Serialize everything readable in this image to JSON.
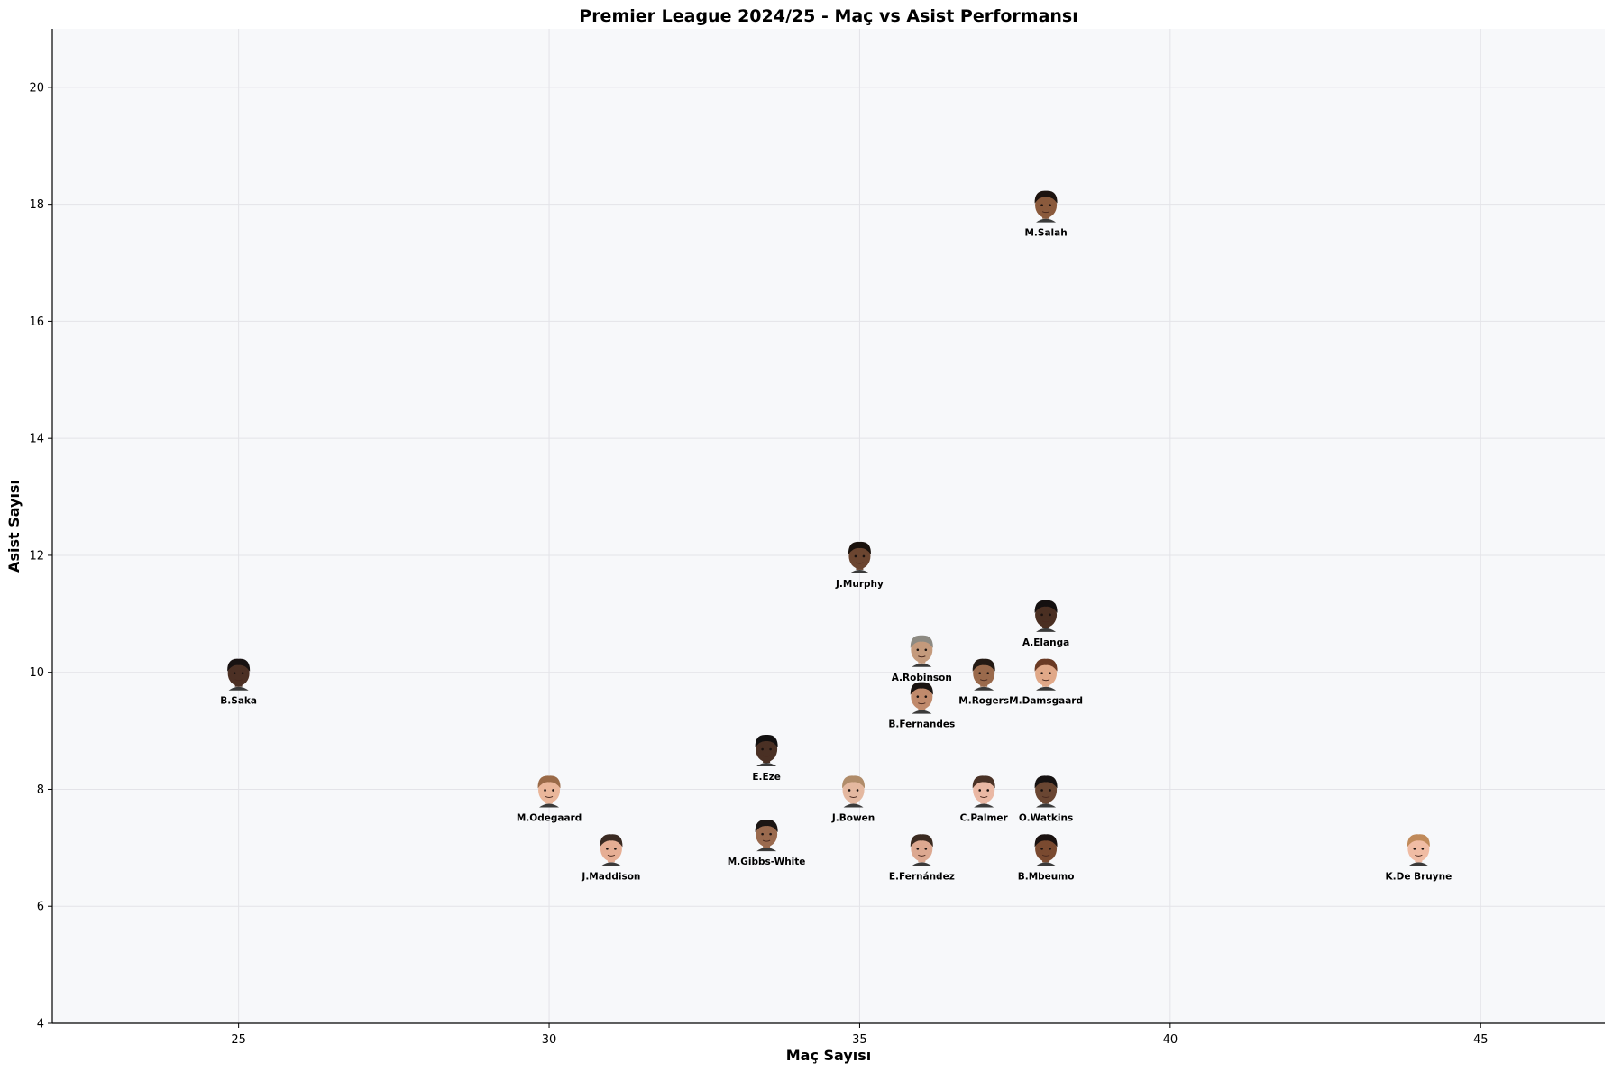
{
  "chart_data": {
    "type": "scatter",
    "title": "Premier League 2024/25 - Maç vs Asist Performansı",
    "xlabel": "Maç Sayısı",
    "ylabel": "Asist Sayısı",
    "xlim": [
      22,
      47
    ],
    "ylim": [
      4,
      21
    ],
    "xticks": [
      25,
      30,
      35,
      40,
      45
    ],
    "yticks": [
      4,
      6,
      8,
      10,
      12,
      14,
      16,
      18,
      20
    ],
    "grid": true,
    "marker": "player-face-photo",
    "points": [
      {
        "name": "M.Salah",
        "x": 38,
        "y": 18,
        "skin": "#8a5a3c",
        "hair": "#1d1410"
      },
      {
        "name": "J.Murphy",
        "x": 35,
        "y": 12,
        "skin": "#6b4530",
        "hair": "#1a120d"
      },
      {
        "name": "A.Elanga",
        "x": 38,
        "y": 11,
        "skin": "#4a2f22",
        "hair": "#141010"
      },
      {
        "name": "A.Robinson",
        "x": 36,
        "y": 10.4,
        "skin": "#c49a7c",
        "hair": "#8d8a82"
      },
      {
        "name": "B.Saka",
        "x": 25,
        "y": 10,
        "skin": "#4c3024",
        "hair": "#181212"
      },
      {
        "name": "M.Rogers",
        "x": 37,
        "y": 10,
        "skin": "#9a6a4c",
        "hair": "#241a14"
      },
      {
        "name": "M.Damsgaard",
        "x": 38,
        "y": 10,
        "skin": "#e0a888",
        "hair": "#6a3a24"
      },
      {
        "name": "B.Fernandes",
        "x": 36,
        "y": 9.6,
        "skin": "#c08a6c",
        "hair": "#1a1412"
      },
      {
        "name": "E.Eze",
        "x": 33.5,
        "y": 8.7,
        "skin": "#4a3024",
        "hair": "#121010"
      },
      {
        "name": "M.Odegaard",
        "x": 30,
        "y": 8,
        "skin": "#eab69a",
        "hair": "#9a6a48"
      },
      {
        "name": "J.Bowen",
        "x": 34.9,
        "y": 8,
        "skin": "#e4b8a0",
        "hair": "#b08c6a"
      },
      {
        "name": "C.Palmer",
        "x": 37,
        "y": 8,
        "skin": "#eab8a4",
        "hair": "#4a3226"
      },
      {
        "name": "O.Watkins",
        "x": 38,
        "y": 8,
        "skin": "#6a4632",
        "hair": "#161212"
      },
      {
        "name": "M.Gibbs-White",
        "x": 33.5,
        "y": 7.25,
        "skin": "#9a6a4e",
        "hair": "#1c1614"
      },
      {
        "name": "J.Maddison",
        "x": 31,
        "y": 7,
        "skin": "#e6ae94",
        "hair": "#3a2a22"
      },
      {
        "name": "E.Fernández",
        "x": 36,
        "y": 7,
        "skin": "#dca890",
        "hair": "#3a2a20"
      },
      {
        "name": "B.Mbeumo",
        "x": 38,
        "y": 7,
        "skin": "#7a4a30",
        "hair": "#1a1210"
      },
      {
        "name": "K.De Bruyne",
        "x": 44,
        "y": 7,
        "skin": "#f0bca4",
        "hair": "#c08a5a"
      }
    ],
    "colors": {
      "plot_background": "#f7f8fa",
      "grid": "#e3e3e8",
      "axis": "#000000"
    }
  }
}
